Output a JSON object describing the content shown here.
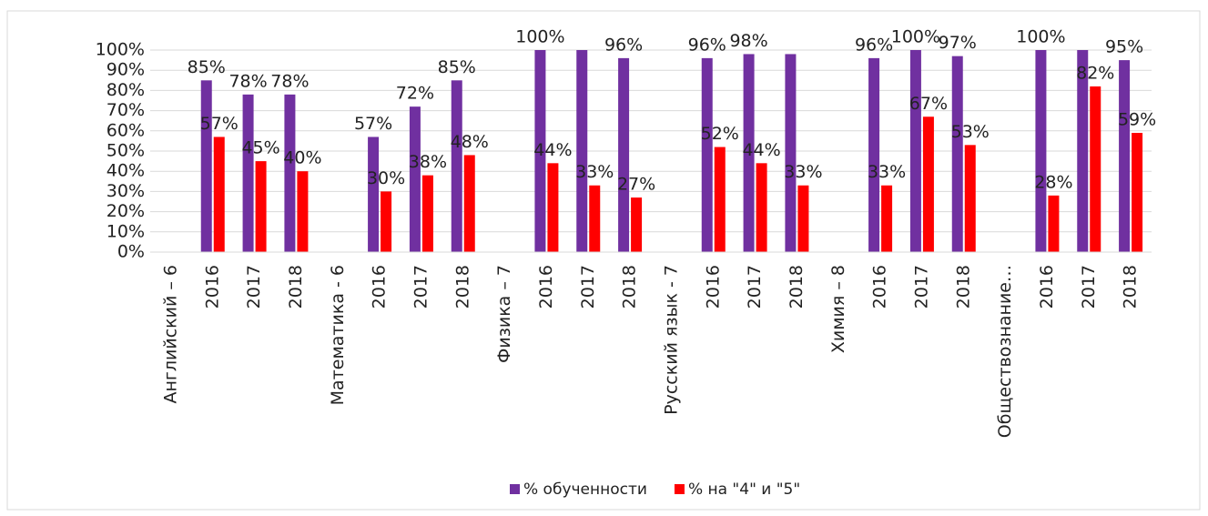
{
  "chart_data": {
    "type": "bar",
    "categories": [
      "Английский – 6",
      "2016",
      "2017",
      "2018",
      "Математика - 6",
      "2016",
      "2017",
      "2018",
      "Физика – 7",
      "2016",
      "2017",
      "2018",
      "Русский язык - 7",
      "2016",
      "2017",
      "2018",
      "Химия – 8",
      "2016",
      "2017",
      "2018",
      "Обществознание…",
      "2016",
      "2017",
      "2018"
    ],
    "series": [
      {
        "name": "% обученности",
        "color": "#7030a0",
        "values": [
          null,
          85,
          78,
          78,
          null,
          57,
          72,
          85,
          null,
          100,
          100,
          96,
          null,
          96,
          98,
          98,
          null,
          96,
          100,
          97,
          null,
          100,
          100,
          95
        ],
        "value_labels": [
          null,
          "85%",
          "78%",
          "78%",
          null,
          "57%",
          "72%",
          "85%",
          null,
          "100%",
          null,
          "96%",
          null,
          "96%",
          "98%",
          null,
          null,
          "96%",
          "100%",
          "97%",
          null,
          "100%",
          null,
          "95%"
        ]
      },
      {
        "name": "% на \"4\" и \"5\"",
        "color": "#ff0000",
        "values": [
          null,
          57,
          45,
          40,
          null,
          30,
          38,
          48,
          null,
          44,
          33,
          27,
          null,
          52,
          44,
          33,
          null,
          33,
          67,
          53,
          null,
          28,
          82,
          59
        ],
        "value_labels": [
          null,
          "57%",
          "45%",
          "40%",
          null,
          "30%",
          "38%",
          "48%",
          null,
          "44%",
          "33%",
          "27%",
          null,
          "52%",
          "44%",
          "33%",
          null,
          "33%",
          "67%",
          "53%",
          null,
          "28%",
          "82%",
          "59%"
        ]
      }
    ],
    "ylim": [
      0,
      100
    ],
    "yticks": [
      {
        "value": 0,
        "label": "0%"
      },
      {
        "value": 10,
        "label": "10%"
      },
      {
        "value": 20,
        "label": "20%"
      },
      {
        "value": 30,
        "label": "30%"
      },
      {
        "value": 40,
        "label": "40%"
      },
      {
        "value": 50,
        "label": "50%"
      },
      {
        "value": 60,
        "label": "60%"
      },
      {
        "value": 70,
        "label": "70%"
      },
      {
        "value": 80,
        "label": "80%"
      },
      {
        "value": 90,
        "label": "90%"
      },
      {
        "value": 100,
        "label": "100%"
      }
    ],
    "grid": true,
    "legend": "bottom"
  }
}
